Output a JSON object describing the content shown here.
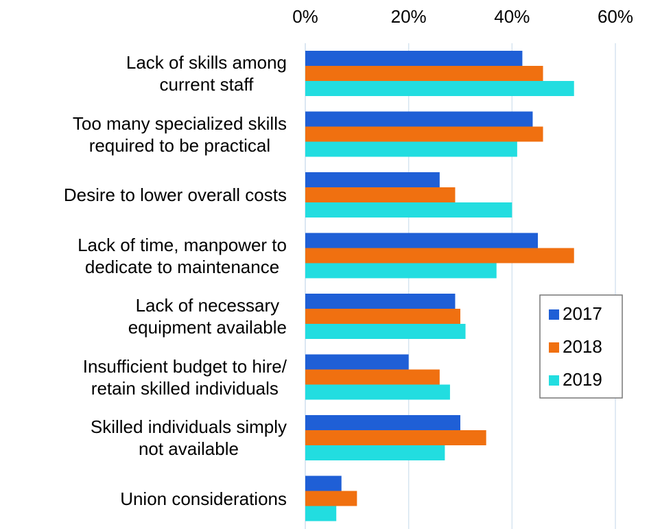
{
  "chart_data": {
    "type": "hbar",
    "categories": [
      "Lack of skills among\ncurrent staff",
      "Too many specialized skills\nrequired to be practical",
      "Desire to lower overall costs",
      "Lack of time, manpower to\ndedicate to maintenance",
      "Lack of necessary\nequipment available",
      "Insufficient budget to hire/\nretain skilled individuals",
      "Skilled individuals simply\nnot available",
      "Union considerations"
    ],
    "series": [
      {
        "name": "2017",
        "color": "#1f5fd6",
        "values": [
          42,
          44,
          26,
          45,
          29,
          20,
          30,
          7
        ]
      },
      {
        "name": "2018",
        "color": "#f07010",
        "values": [
          46,
          46,
          29,
          52,
          30,
          26,
          35,
          10
        ]
      },
      {
        "name": "2019",
        "color": "#22dde0",
        "values": [
          52,
          41,
          40,
          37,
          31,
          28,
          27,
          6
        ]
      }
    ],
    "xlim": [
      0,
      60
    ],
    "xticks": [
      {
        "value": 0,
        "label": "0%"
      },
      {
        "value": 20,
        "label": "20%"
      },
      {
        "value": 40,
        "label": "40%"
      },
      {
        "value": 60,
        "label": "60%"
      }
    ],
    "grid": true,
    "legend": "right"
  }
}
